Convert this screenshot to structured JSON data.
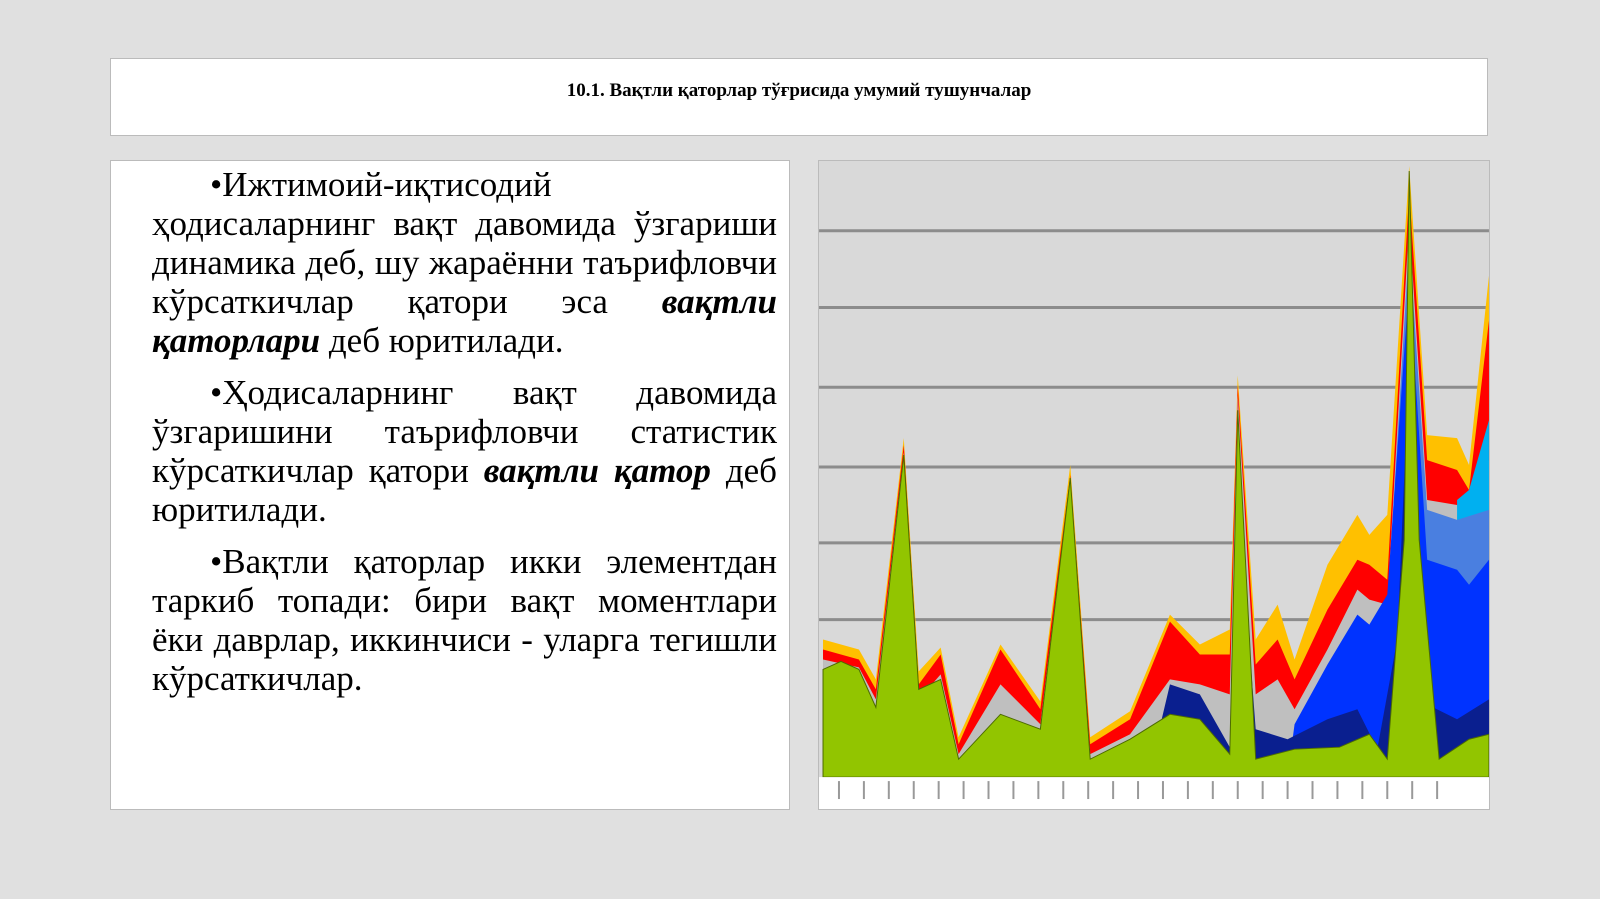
{
  "header": {
    "title": "10.1. Вақтли қаторлар тўғрисида умумий тушунчалар"
  },
  "paragraphs": [
    [
      {
        "text": "•Ижтимоий-иқтисодий ҳодисаларнинг вақт давомида ўзгариши динамика деб, шу жараённи таърифловчи кўрсаткичлар қатори эса "
      },
      {
        "text": "вақтли қаторлари",
        "emphasis": true
      },
      {
        "text": " деб юритилади."
      }
    ],
    [
      {
        "text": "•Ҳодисаларнинг вақт давомида ўзгаришини таърифловчи статистик кўрсаткичлар қатори "
      },
      {
        "text": "вақтли қатор",
        "emphasis": true
      },
      {
        "text": " деб юритилади."
      }
    ],
    [
      {
        "text": "•Вақтли қаторлар икки элементдан таркиб топади: бири вақт моментлари ёки даврлар, иккинчиси - уларга тегишли кўрсаткичлар."
      }
    ]
  ]
}
